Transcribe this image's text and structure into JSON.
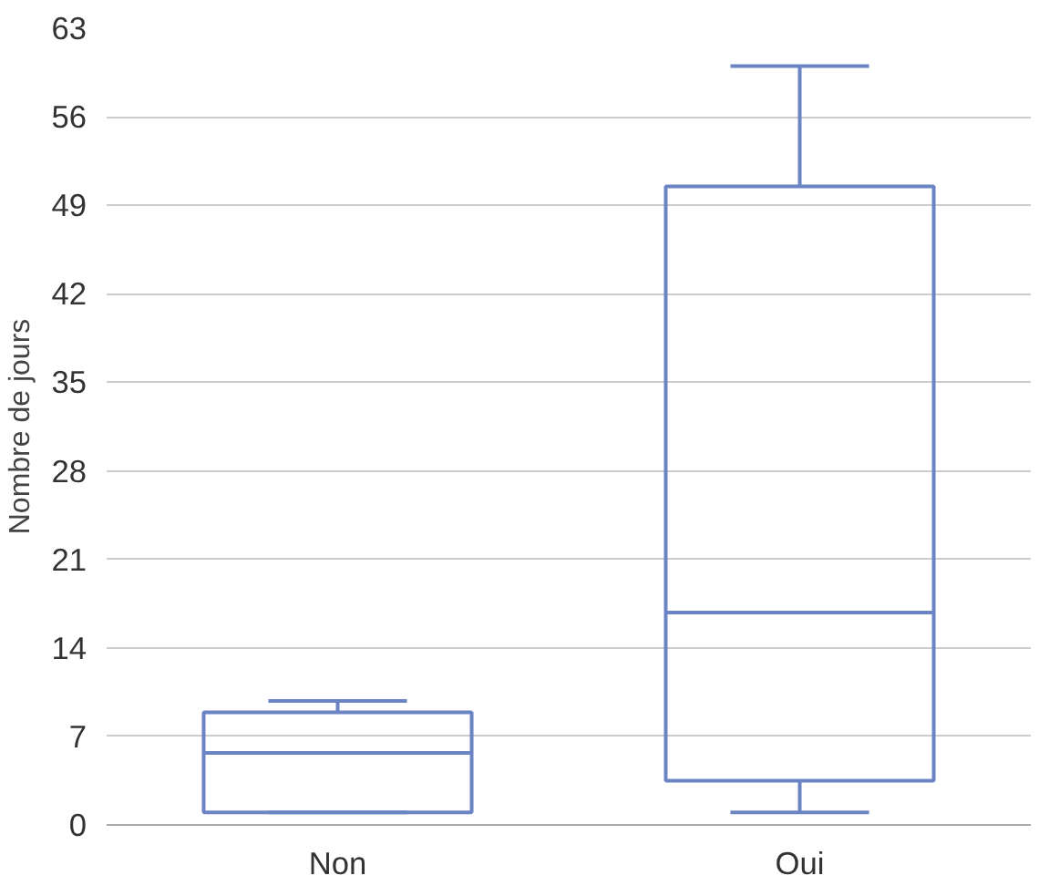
{
  "chart_data": {
    "type": "box",
    "ylabel": "Nombre de jours",
    "categories": [
      "Non",
      "Oui"
    ],
    "boxes": [
      {
        "low": 1,
        "q1": 1,
        "median": 5.7,
        "q3": 8.9,
        "high": 9.8
      },
      {
        "low": 1,
        "q1": 3.5,
        "median": 16.8,
        "q3": 50.5,
        "high": 60
      }
    ],
    "color": "#6b84c4",
    "ylim": [
      0,
      63
    ],
    "yticks": [
      0,
      7,
      14,
      21,
      28,
      35,
      42,
      49,
      56,
      63
    ],
    "grid": "y"
  }
}
